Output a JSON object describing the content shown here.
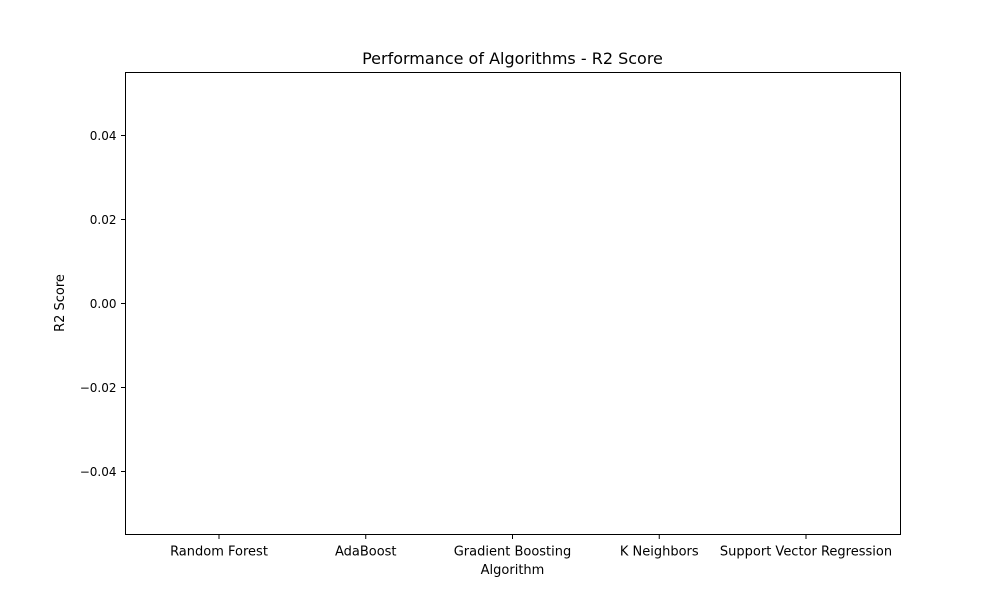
{
  "chart_data": {
    "type": "bar",
    "title": "Performance of Algorithms - R2 Score",
    "xlabel": "Algorithm",
    "ylabel": "R2 Score",
    "categories": [
      "Random Forest",
      "AdaBoost",
      "Gradient Boosting",
      "K Neighbors",
      "Support Vector Regression"
    ],
    "values": [
      0,
      0,
      0,
      0,
      0
    ],
    "ylim": [
      -0.055,
      0.055
    ],
    "yticks": [
      -0.04,
      -0.02,
      0.0,
      0.02,
      0.04
    ],
    "ytick_labels": [
      "−0.04",
      "−0.02",
      "0.00",
      "0.02",
      "0.04"
    ],
    "grid": false,
    "legend": "none",
    "colors": {
      "axis": "#000000",
      "bar": "#1f77b4",
      "background": "#ffffff"
    }
  }
}
